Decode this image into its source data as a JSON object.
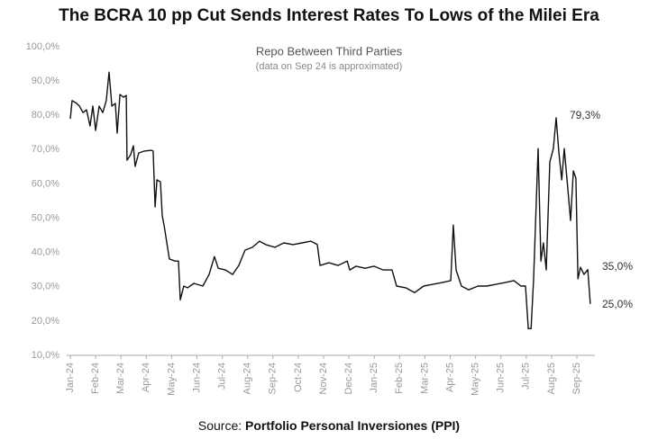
{
  "chart_data": {
    "type": "line",
    "title": "The BCRA 10 pp Cut Sends Interest Rates To Lows of the Milei Era",
    "subtitle": "Repo Between Third Parties",
    "note": "(data on Sep 24 is approximated)",
    "source": {
      "label": "Source:",
      "name": "Portfolio Personal Inversiones (PPI)"
    },
    "xlim": [
      0,
      20.6
    ],
    "xticks": [
      {
        "value": 0,
        "label": "Jan-24"
      },
      {
        "value": 1,
        "label": "Feb-24"
      },
      {
        "value": 2,
        "label": "Mar-24"
      },
      {
        "value": 3,
        "label": "Apr-24"
      },
      {
        "value": 4,
        "label": "May-24"
      },
      {
        "value": 5,
        "label": "Jun-24"
      },
      {
        "value": 6,
        "label": "Jul-24"
      },
      {
        "value": 7,
        "label": "Aug-24"
      },
      {
        "value": 8,
        "label": "Sep-24"
      },
      {
        "value": 9,
        "label": "Oct-24"
      },
      {
        "value": 10,
        "label": "Nov-24"
      },
      {
        "value": 11,
        "label": "Dec-24"
      },
      {
        "value": 12,
        "label": "Jan-25"
      },
      {
        "value": 13,
        "label": "Feb-25"
      },
      {
        "value": 14,
        "label": "Mar-25"
      },
      {
        "value": 15,
        "label": "Apr-25"
      },
      {
        "value": 16,
        "label": "May-25"
      },
      {
        "value": 17,
        "label": "Jun-25"
      },
      {
        "value": 18,
        "label": "Jul-25"
      },
      {
        "value": 19,
        "label": "Aug-25"
      },
      {
        "value": 20,
        "label": "Sep-25"
      }
    ],
    "ylim": [
      10,
      100
    ],
    "yticks": [
      {
        "value": 10,
        "label": "10,0%"
      },
      {
        "value": 20,
        "label": "20,0%"
      },
      {
        "value": 30,
        "label": "30,0%"
      },
      {
        "value": 40,
        "label": "40,0%"
      },
      {
        "value": 50,
        "label": "50,0%"
      },
      {
        "value": 60,
        "label": "60,0%"
      },
      {
        "value": 70,
        "label": "70,0%"
      },
      {
        "value": 80,
        "label": "80,0%"
      },
      {
        "value": 90,
        "label": "90,0%"
      },
      {
        "value": 100,
        "label": "100,0%"
      }
    ],
    "grid": false,
    "series": [
      {
        "name": "Repo Between Third Parties",
        "color": "#111111",
        "x": [
          0,
          0.07,
          0.25,
          0.36,
          0.5,
          0.64,
          0.78,
          0.89,
          1.0,
          1.14,
          1.28,
          1.42,
          1.53,
          1.64,
          1.78,
          1.85,
          1.96,
          2.1,
          2.21,
          2.24,
          2.38,
          2.49,
          2.56,
          2.7,
          2.92,
          3.2,
          3.27,
          3.35,
          3.42,
          3.56,
          3.63,
          3.7,
          3.81,
          3.91,
          4.13,
          4.27,
          4.34,
          4.48,
          4.63,
          4.88,
          5.23,
          5.48,
          5.69,
          5.84,
          6.12,
          6.41,
          6.65,
          6.9,
          7.19,
          7.47,
          7.72,
          8.08,
          8.43,
          8.79,
          9.15,
          9.5,
          9.75,
          9.86,
          10.21,
          10.57,
          10.93,
          11.03,
          11.28,
          11.64,
          11.99,
          12.35,
          12.7,
          12.88,
          13.24,
          13.59,
          13.95,
          14.31,
          14.66,
          15.02,
          15.12,
          15.23,
          15.44,
          15.73,
          16.09,
          16.44,
          16.8,
          17.15,
          17.51,
          17.79,
          17.97,
          18.08,
          18.19,
          18.29,
          18.47,
          18.58,
          18.68,
          18.79,
          18.93,
          19.07,
          19.18,
          19.29,
          19.4,
          19.5,
          19.61,
          19.75,
          19.86,
          19.96,
          20.04,
          20.14,
          20.28,
          20.43,
          20.53
        ],
        "values": [
          79.0,
          84.3,
          83.5,
          82.7,
          80.8,
          81.6,
          76.9,
          82.7,
          75.6,
          82.7,
          80.8,
          84.3,
          92.6,
          82.7,
          83.5,
          74.8,
          86.1,
          85.3,
          85.8,
          66.9,
          68.5,
          71.1,
          65.1,
          69.0,
          69.6,
          69.8,
          69.6,
          53.3,
          61.2,
          60.6,
          50.7,
          48.0,
          42.8,
          38.1,
          37.5,
          37.5,
          26.2,
          30.2,
          29.7,
          31.0,
          30.2,
          33.6,
          38.8,
          35.4,
          34.9,
          33.6,
          36.2,
          40.7,
          41.5,
          43.3,
          42.3,
          41.5,
          42.8,
          42.3,
          42.8,
          43.3,
          42.3,
          36.2,
          37.0,
          36.2,
          37.5,
          34.9,
          36.0,
          35.4,
          36.0,
          34.9,
          34.9,
          30.2,
          29.7,
          28.3,
          30.2,
          30.7,
          31.2,
          31.8,
          48.0,
          34.9,
          30.2,
          29.1,
          30.2,
          30.2,
          30.7,
          31.2,
          31.8,
          30.2,
          30.2,
          17.8,
          17.8,
          32.3,
          70.3,
          37.5,
          42.8,
          34.9,
          66.4,
          70.3,
          79.3,
          69.0,
          61.2,
          70.3,
          61.2,
          49.3,
          63.8,
          61.7,
          32.3,
          35.7,
          33.6,
          35.0,
          25.0
        ]
      }
    ],
    "annotations": [
      {
        "text": "79,3%",
        "value": 79.3
      },
      {
        "text": "35,0%",
        "value": 35.0
      },
      {
        "text": "25,0%",
        "value": 25.0
      }
    ]
  }
}
